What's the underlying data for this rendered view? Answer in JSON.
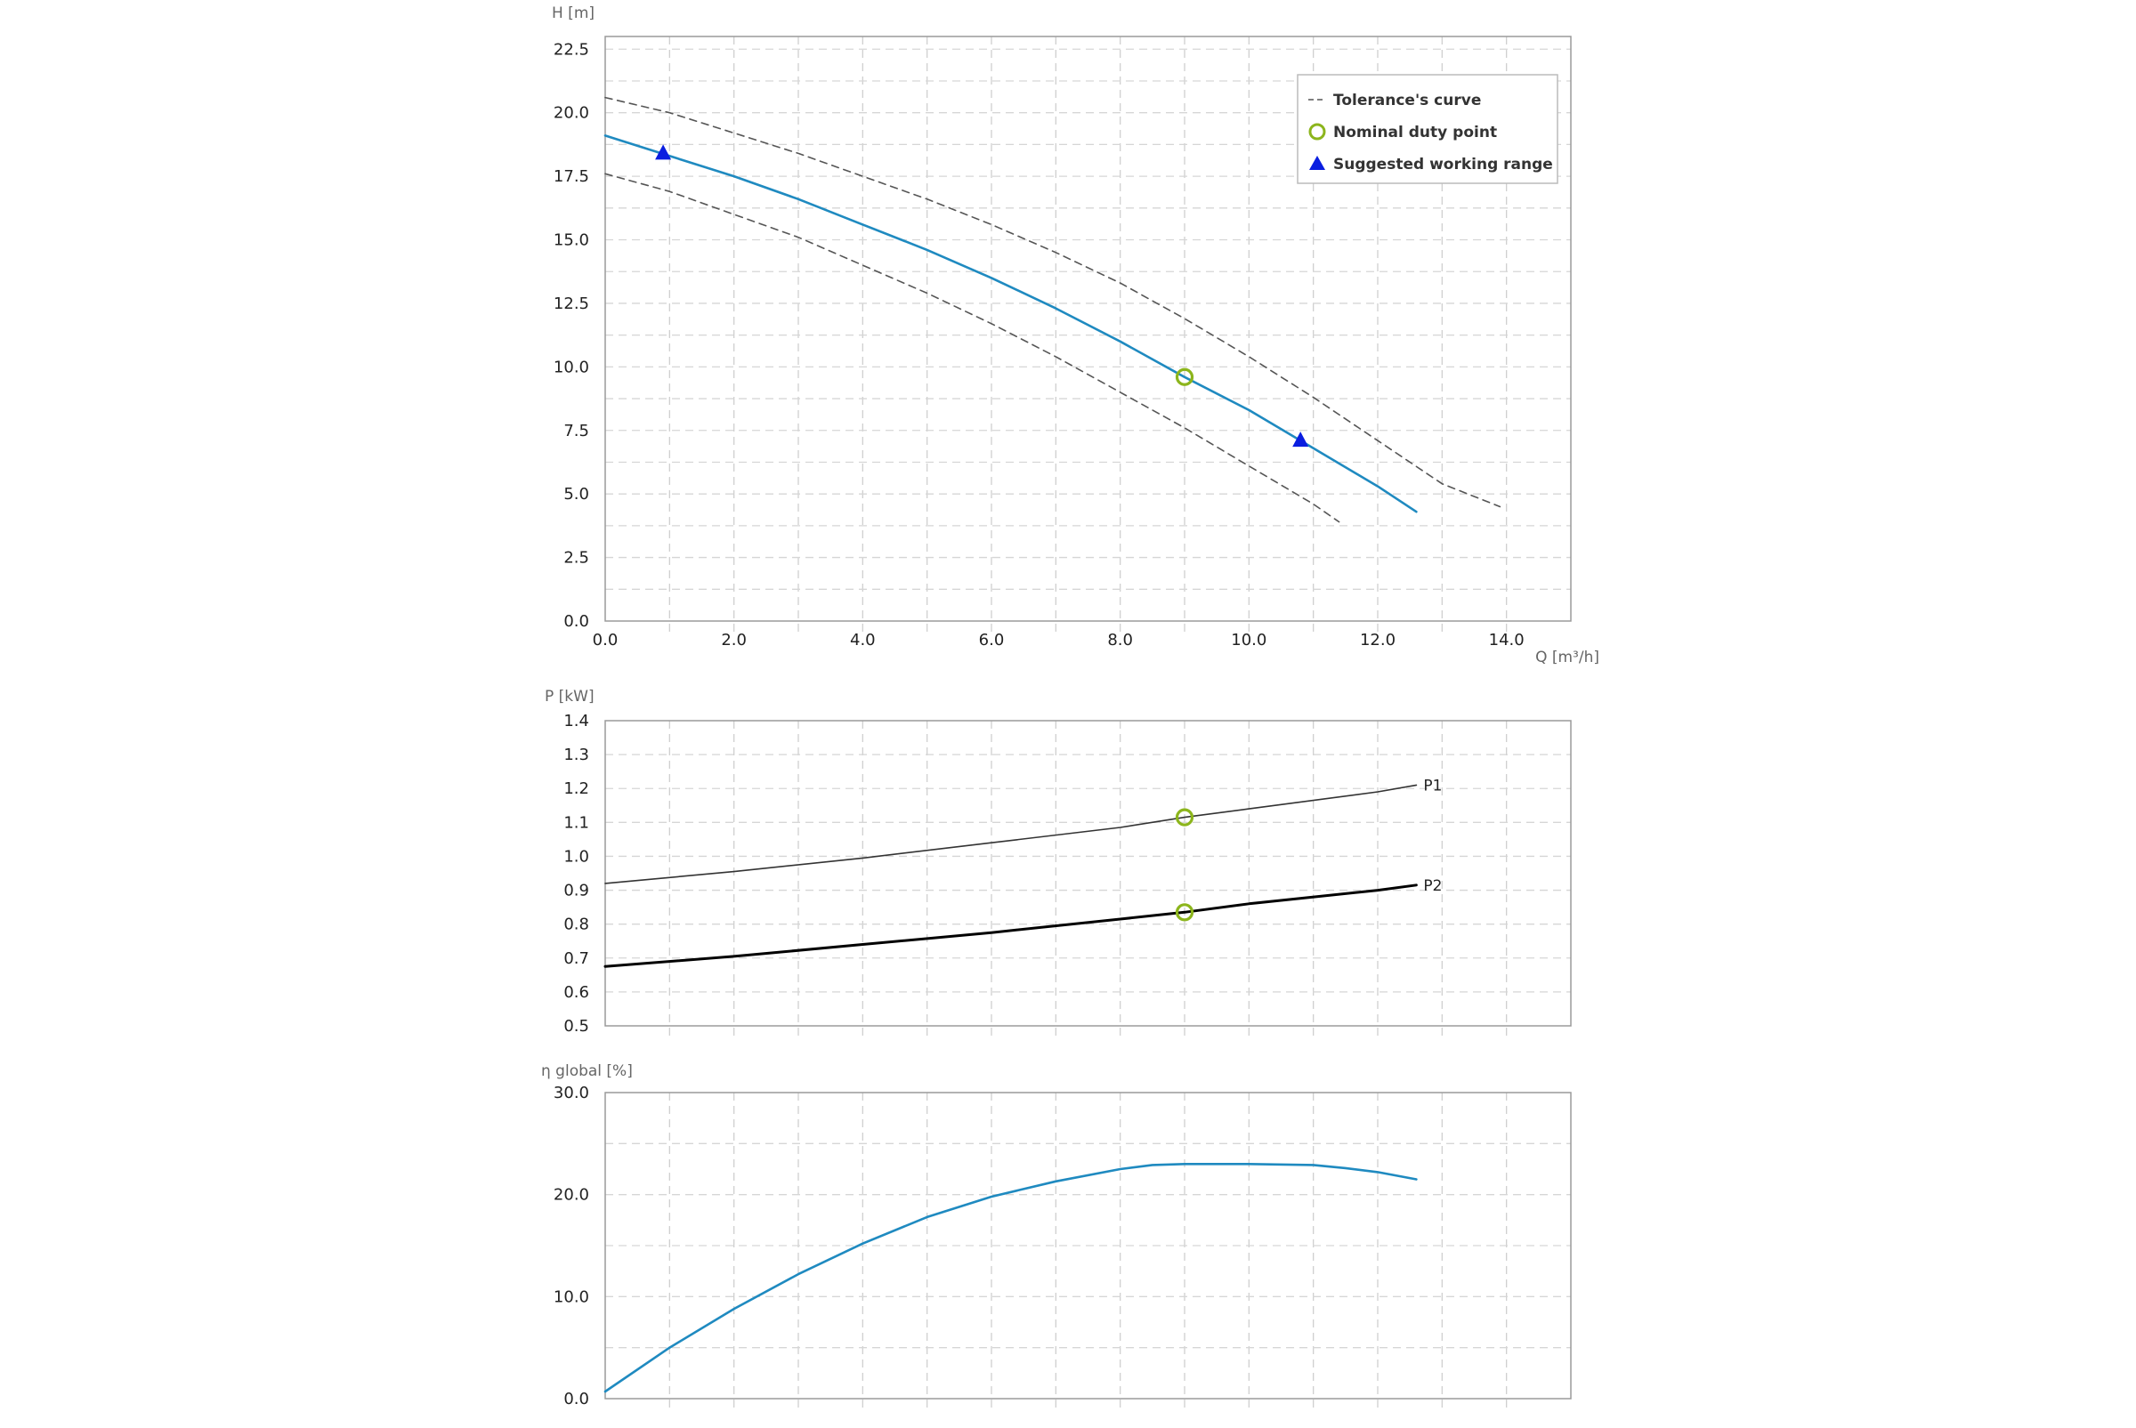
{
  "chart_data": [
    {
      "type": "line",
      "id": "head",
      "ylabel": "H [m]",
      "xlabel": "Q [m³/h]",
      "xlim": [
        0,
        15
      ],
      "ylim": [
        0,
        23
      ],
      "x_ticks": [
        "0.0",
        "2.0",
        "4.0",
        "6.0",
        "8.0",
        "10.0",
        "12.0",
        "14.0"
      ],
      "y_ticks": [
        "0.0",
        "2.5",
        "5.0",
        "7.5",
        "10.0",
        "12.5",
        "15.0",
        "17.5",
        "20.0",
        "22.5"
      ],
      "grid": true,
      "legend_position": "top-right",
      "legend": [
        "Tolerance's curve",
        "Nominal duty point",
        "Suggested working range"
      ],
      "series": [
        {
          "role": "head-curve",
          "color": "#1f8ac0",
          "style": "solid",
          "points": [
            [
              0,
              19.1
            ],
            [
              1,
              18.3
            ],
            [
              2,
              17.5
            ],
            [
              3,
              16.6
            ],
            [
              4,
              15.6
            ],
            [
              5,
              14.6
            ],
            [
              6,
              13.5
            ],
            [
              7,
              12.3
            ],
            [
              8,
              11.0
            ],
            [
              9,
              9.6
            ],
            [
              10,
              8.3
            ],
            [
              11,
              6.8
            ],
            [
              12,
              5.3
            ],
            [
              12.6,
              4.3
            ]
          ]
        },
        {
          "role": "tolerance-upper",
          "color": "#555555",
          "style": "dashed",
          "points": [
            [
              0,
              20.6
            ],
            [
              1,
              20.0
            ],
            [
              2,
              19.2
            ],
            [
              3,
              18.4
            ],
            [
              4,
              17.5
            ],
            [
              5,
              16.6
            ],
            [
              6,
              15.6
            ],
            [
              7,
              14.5
            ],
            [
              8,
              13.3
            ],
            [
              9,
              11.9
            ],
            [
              10,
              10.4
            ],
            [
              11,
              8.8
            ],
            [
              12,
              7.1
            ],
            [
              13,
              5.4
            ],
            [
              13.9,
              4.5
            ]
          ]
        },
        {
          "role": "tolerance-lower",
          "color": "#555555",
          "style": "dashed",
          "points": [
            [
              0,
              17.6
            ],
            [
              1,
              16.9
            ],
            [
              2,
              16.0
            ],
            [
              3,
              15.1
            ],
            [
              4,
              14.0
            ],
            [
              5,
              12.9
            ],
            [
              6,
              11.7
            ],
            [
              7,
              10.4
            ],
            [
              8,
              9.0
            ],
            [
              9,
              7.6
            ],
            [
              10,
              6.1
            ],
            [
              11,
              4.6
            ],
            [
              11.4,
              3.9
            ]
          ]
        }
      ],
      "duty_point": {
        "x": 9.0,
        "y": 9.6,
        "color": "#8cb51c"
      },
      "working_range": [
        {
          "x": 0.9,
          "y": 18.4
        },
        {
          "x": 10.8,
          "y": 7.1
        }
      ],
      "working_range_color": "#0a1ee0"
    },
    {
      "type": "line",
      "id": "power",
      "ylabel": "P [kW]",
      "xlim": [
        0,
        15
      ],
      "ylim": [
        0.5,
        1.4
      ],
      "y_ticks": [
        "0.5",
        "0.6",
        "0.7",
        "0.8",
        "0.9",
        "1.0",
        "1.1",
        "1.2",
        "1.3",
        "1.4"
      ],
      "grid": true,
      "series": [
        {
          "name": "P1",
          "color": "#333333",
          "width": 1.6,
          "points": [
            [
              0,
              0.92
            ],
            [
              2,
              0.955
            ],
            [
              4,
              0.995
            ],
            [
              6,
              1.04
            ],
            [
              8,
              1.085
            ],
            [
              9,
              1.115
            ],
            [
              10,
              1.14
            ],
            [
              12,
              1.19
            ],
            [
              12.6,
              1.21
            ]
          ]
        },
        {
          "name": "P2",
          "color": "#000000",
          "width": 3,
          "points": [
            [
              0,
              0.675
            ],
            [
              2,
              0.705
            ],
            [
              4,
              0.74
            ],
            [
              6,
              0.775
            ],
            [
              8,
              0.815
            ],
            [
              9,
              0.835
            ],
            [
              10,
              0.86
            ],
            [
              12,
              0.9
            ],
            [
              12.6,
              0.915
            ]
          ]
        }
      ],
      "duty_points": [
        {
          "x": 9.0,
          "y": 1.115
        },
        {
          "x": 9.0,
          "y": 0.835
        }
      ],
      "duty_color": "#8cb51c"
    },
    {
      "type": "line",
      "id": "efficiency",
      "ylabel": "η global [%]",
      "xlim": [
        0,
        15
      ],
      "ylim": [
        0,
        30
      ],
      "y_ticks": [
        "0.0",
        "10.0",
        "20.0",
        "30.0"
      ],
      "grid": true,
      "series": [
        {
          "role": "efficiency",
          "color": "#1f8ac0",
          "points": [
            [
              0,
              0.7
            ],
            [
              1,
              5.0
            ],
            [
              2,
              8.8
            ],
            [
              3,
              12.2
            ],
            [
              4,
              15.2
            ],
            [
              5,
              17.8
            ],
            [
              6,
              19.8
            ],
            [
              7,
              21.3
            ],
            [
              8,
              22.5
            ],
            [
              8.5,
              22.9
            ],
            [
              9,
              23.0
            ],
            [
              10,
              23.0
            ],
            [
              11,
              22.9
            ],
            [
              11.5,
              22.6
            ],
            [
              12,
              22.2
            ],
            [
              12.6,
              21.5
            ]
          ]
        }
      ]
    }
  ]
}
